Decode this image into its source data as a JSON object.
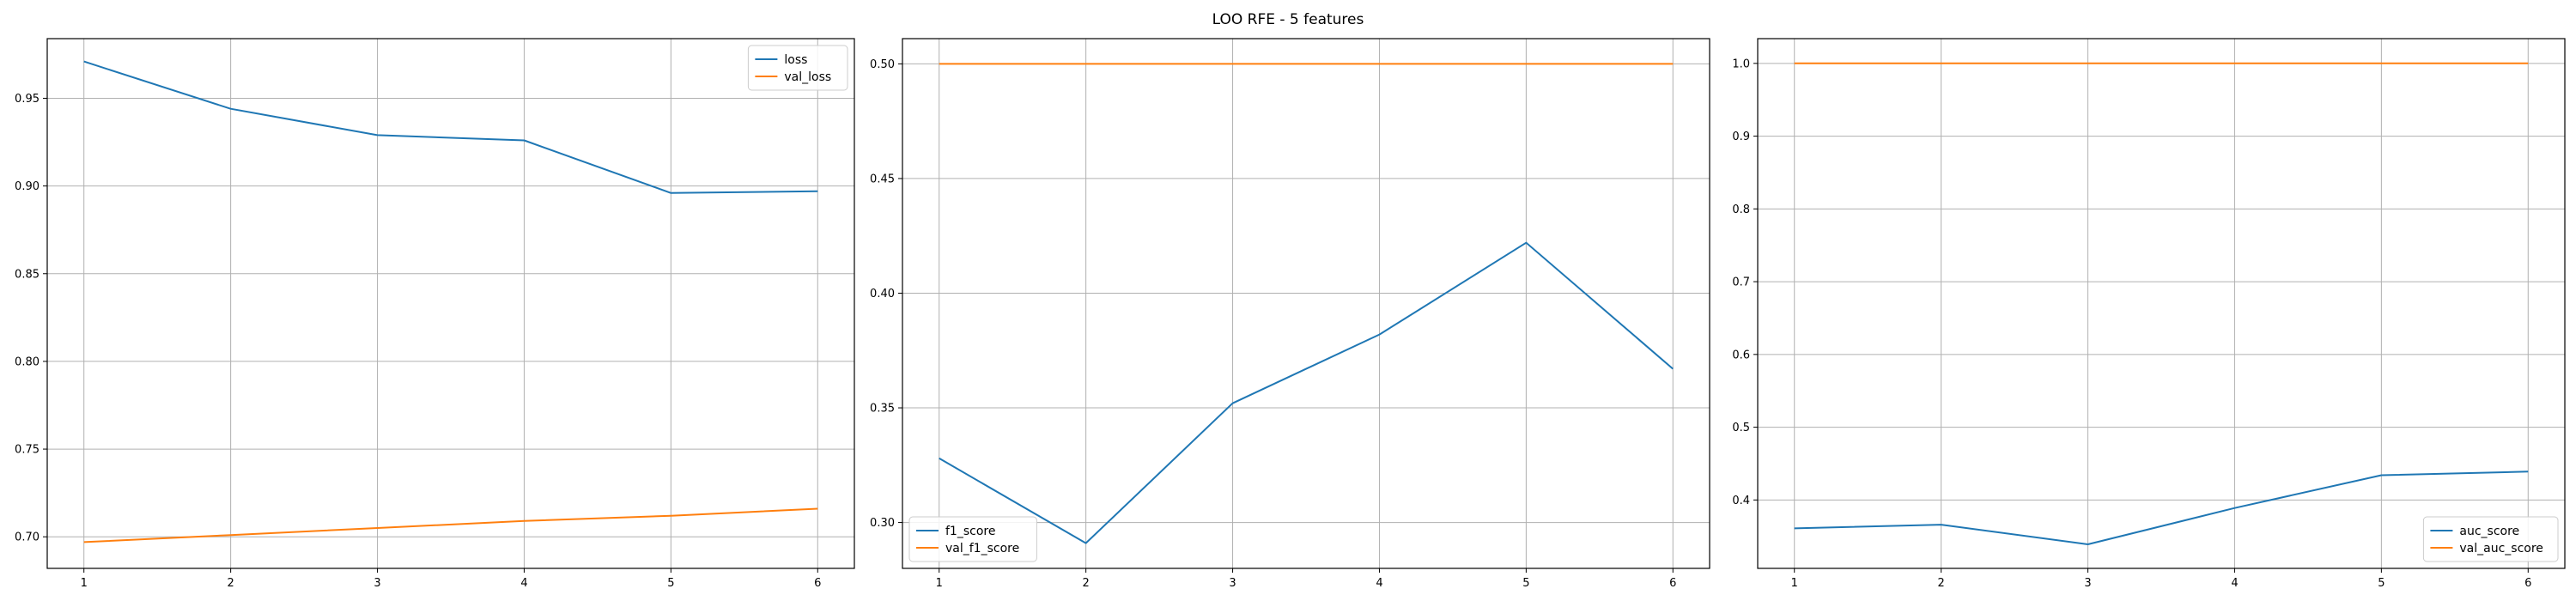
{
  "figure": {
    "title": "LOO RFE - 5 features"
  },
  "colors": {
    "series1": "#1f77b4",
    "series2": "#ff7f0e",
    "grid": "#b0b0b0",
    "axes": "#000000"
  },
  "chart_data": [
    {
      "type": "line",
      "x": [
        1,
        2,
        3,
        4,
        5,
        6
      ],
      "xticks": [
        "1",
        "2",
        "3",
        "4",
        "5",
        "6"
      ],
      "xlim": [
        0.75,
        6.25
      ],
      "ylim": [
        0.682,
        0.984
      ],
      "yticks": [
        "0.70",
        "0.75",
        "0.80",
        "0.85",
        "0.90",
        "0.95"
      ],
      "grid": true,
      "legend_loc": "upper-right",
      "series": [
        {
          "name": "loss",
          "color": "#1f77b4",
          "values": [
            0.971,
            0.944,
            0.929,
            0.926,
            0.896,
            0.897
          ]
        },
        {
          "name": "val_loss",
          "color": "#ff7f0e",
          "values": [
            0.697,
            0.701,
            0.705,
            0.709,
            0.712,
            0.716
          ]
        }
      ]
    },
    {
      "type": "line",
      "x": [
        1,
        2,
        3,
        4,
        5,
        6
      ],
      "xticks": [
        "1",
        "2",
        "3",
        "4",
        "5",
        "6"
      ],
      "xlim": [
        0.75,
        6.25
      ],
      "ylim": [
        0.28,
        0.511
      ],
      "yticks": [
        "0.30",
        "0.35",
        "0.40",
        "0.45",
        "0.50"
      ],
      "grid": true,
      "legend_loc": "lower-left",
      "series": [
        {
          "name": "f1_score",
          "color": "#1f77b4",
          "values": [
            0.328,
            0.291,
            0.352,
            0.382,
            0.422,
            0.367
          ]
        },
        {
          "name": "val_f1_score",
          "color": "#ff7f0e",
          "values": [
            0.5,
            0.5,
            0.5,
            0.5,
            0.5,
            0.5
          ]
        }
      ]
    },
    {
      "type": "line",
      "x": [
        1,
        2,
        3,
        4,
        5,
        6
      ],
      "xticks": [
        "1",
        "2",
        "3",
        "4",
        "5",
        "6"
      ],
      "xlim": [
        0.75,
        6.25
      ],
      "ylim": [
        0.306,
        1.034
      ],
      "yticks": [
        "0.4",
        "0.5",
        "0.6",
        "0.7",
        "0.8",
        "0.9",
        "1.0"
      ],
      "grid": true,
      "legend_loc": "lower-right",
      "series": [
        {
          "name": "auc_score",
          "color": "#1f77b4",
          "values": [
            0.361,
            0.366,
            0.339,
            0.389,
            0.434,
            0.439
          ]
        },
        {
          "name": "val_auc_score",
          "color": "#ff7f0e",
          "values": [
            1.0,
            1.0,
            1.0,
            1.0,
            1.0,
            1.0
          ]
        }
      ]
    }
  ]
}
